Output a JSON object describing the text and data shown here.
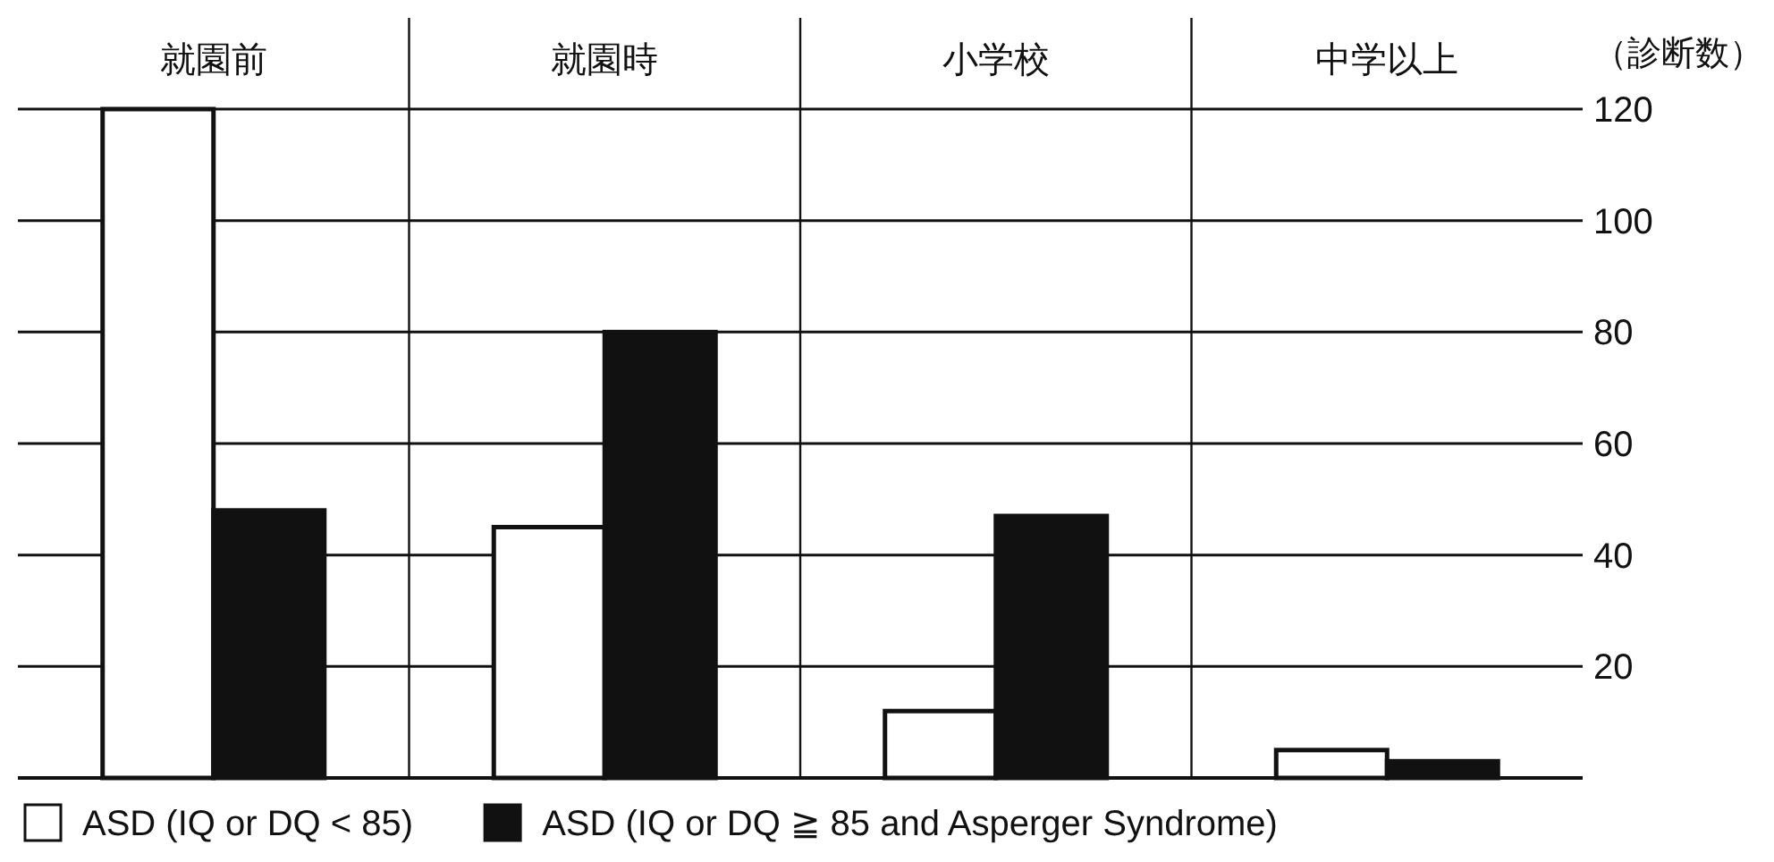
{
  "chart_data": {
    "type": "bar",
    "ylabel": "（診断数）",
    "categories": [
      "就園前",
      "就園時",
      "小学校",
      "中学以上"
    ],
    "series": [
      {
        "name": "ASD (IQ or DQ < 85)",
        "color": "#ffffff",
        "values": [
          120,
          45,
          12,
          5
        ]
      },
      {
        "name": "ASD (IQ or DQ ≧ 85 and Asperger Syndrome)",
        "color": "#111111",
        "values": [
          48,
          80,
          47,
          3
        ]
      }
    ],
    "ylim": [
      0,
      120
    ],
    "yticks": [
      20,
      40,
      60,
      80,
      100,
      120
    ],
    "grid": "y",
    "legend": "bottom"
  }
}
